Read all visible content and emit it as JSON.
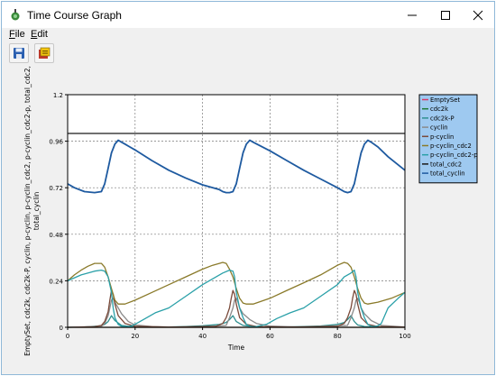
{
  "window": {
    "title": "Time Course Graph"
  },
  "menu": [
    {
      "label": "File",
      "accel": "F"
    },
    {
      "label": "Edit",
      "accel": "E"
    }
  ],
  "toolbar": [
    {
      "icon": "save-icon"
    },
    {
      "icon": "export-icon"
    }
  ],
  "colors": {
    "legend_bg": "#9ec9f0",
    "plot_bg": "#ffffff",
    "grid": "#7a7a7a"
  },
  "chart_data": {
    "type": "line",
    "xlabel": "Time",
    "ylabel": "EmptySet, cdc2k, cdc2k-P, cyclin, p-cyclin, p-cyclin_cdc2, p-cyclin_cdc2-p, total_cdc2, total_cyclin",
    "xlim": [
      0,
      100
    ],
    "ylim": [
      0,
      1.2
    ],
    "xticks": [
      "0",
      "20",
      "40",
      "60",
      "80",
      "100"
    ],
    "yticks": [
      "0",
      "0.24",
      "0.48",
      "0.72",
      "0.96",
      "1.2"
    ],
    "grid": true,
    "legend_position": "right",
    "series": [
      {
        "name": "EmptySet",
        "color": "#d63a6a",
        "x": [
          0,
          100
        ],
        "y": [
          0,
          0
        ]
      },
      {
        "name": "cdc2k",
        "color": "#1f7a3a",
        "x": [
          0,
          100
        ],
        "y": [
          0,
          0
        ]
      },
      {
        "name": "cdc2k-P",
        "color": "#2f8f8f",
        "x": [
          0,
          5,
          10,
          11,
          12,
          13,
          14,
          16,
          19,
          25,
          30,
          35,
          40,
          45,
          47,
          48,
          49,
          50,
          52,
          55,
          60,
          65,
          70,
          75,
          80,
          82,
          83,
          84,
          85,
          86,
          88,
          92,
          96,
          100
        ],
        "y": [
          0,
          0.002,
          0.008,
          0.015,
          0.03,
          0.06,
          0.035,
          0.01,
          0.003,
          0.001,
          0.002,
          0.004,
          0.008,
          0.015,
          0.025,
          0.04,
          0.06,
          0.03,
          0.01,
          0.003,
          0.001,
          0.002,
          0.004,
          0.007,
          0.015,
          0.025,
          0.04,
          0.06,
          0.03,
          0.012,
          0.004,
          0.001,
          0.001,
          0.001
        ]
      },
      {
        "name": "cyclin",
        "color": "#8a8a8a",
        "x": [
          0,
          10,
          11,
          12,
          12.5,
          13,
          13.5,
          14,
          15,
          16,
          18,
          20,
          25,
          30,
          40,
          47,
          48,
          49,
          49.5,
          50,
          50.5,
          51,
          52,
          54,
          56,
          60,
          70,
          83,
          84,
          85,
          85.5,
          86,
          86.5,
          87,
          88,
          90,
          93,
          100
        ],
        "y": [
          0,
          0.005,
          0.02,
          0.06,
          0.1,
          0.14,
          0.15,
          0.13,
          0.1,
          0.07,
          0.03,
          0.012,
          0.004,
          0.002,
          0.001,
          0.01,
          0.05,
          0.1,
          0.14,
          0.15,
          0.13,
          0.1,
          0.07,
          0.04,
          0.02,
          0.006,
          0.001,
          0.01,
          0.05,
          0.1,
          0.14,
          0.15,
          0.13,
          0.1,
          0.07,
          0.035,
          0.01,
          0.002
        ]
      },
      {
        "name": "p-cyclin",
        "color": "#7a4a3a",
        "x": [
          0,
          8,
          10,
          11,
          12,
          12.5,
          13,
          13.5,
          14,
          15,
          17,
          20,
          30,
          44,
          46,
          47,
          48,
          48.5,
          49,
          49.5,
          50,
          51,
          53,
          56,
          65,
          80,
          82,
          83,
          84,
          84.5,
          85,
          85.5,
          86,
          87,
          89,
          92,
          100
        ],
        "y": [
          0,
          0.003,
          0.01,
          0.03,
          0.08,
          0.14,
          0.19,
          0.17,
          0.12,
          0.06,
          0.02,
          0.005,
          0.001,
          0.005,
          0.02,
          0.05,
          0.1,
          0.15,
          0.19,
          0.17,
          0.12,
          0.05,
          0.015,
          0.004,
          0.001,
          0.005,
          0.02,
          0.05,
          0.1,
          0.15,
          0.19,
          0.17,
          0.12,
          0.05,
          0.015,
          0.004,
          0.001
        ]
      },
      {
        "name": "p-cyclin_cdc2",
        "color": "#8a7a2a",
        "x": [
          0,
          2,
          4,
          6,
          8,
          10,
          11,
          12,
          13,
          14,
          15,
          17,
          20,
          25,
          30,
          35,
          40,
          43,
          45,
          46,
          47,
          48,
          49,
          50,
          51,
          52,
          53,
          55,
          60,
          65,
          70,
          75,
          80,
          82,
          83,
          84,
          85,
          86,
          87,
          88,
          89,
          92,
          96,
          100
        ],
        "y": [
          0.24,
          0.27,
          0.295,
          0.315,
          0.33,
          0.33,
          0.31,
          0.26,
          0.2,
          0.14,
          0.12,
          0.12,
          0.14,
          0.18,
          0.22,
          0.26,
          0.3,
          0.32,
          0.33,
          0.335,
          0.33,
          0.3,
          0.26,
          0.2,
          0.15,
          0.125,
          0.12,
          0.12,
          0.15,
          0.19,
          0.23,
          0.27,
          0.32,
          0.335,
          0.33,
          0.31,
          0.26,
          0.2,
          0.15,
          0.125,
          0.12,
          0.13,
          0.15,
          0.18
        ]
      },
      {
        "name": "p-cyclin_cdc2-p",
        "color": "#2aa0a8",
        "x": [
          0,
          4,
          8,
          10,
          11,
          12,
          13,
          13.5,
          14,
          15,
          16,
          17,
          18,
          19,
          20,
          21,
          23,
          26,
          30,
          35,
          40,
          44,
          46,
          48,
          49,
          49.5,
          50,
          51,
          52,
          53,
          54,
          55,
          56,
          57,
          59,
          62,
          66,
          70,
          75,
          80,
          82,
          84,
          85,
          85.5,
          86,
          87,
          88,
          89,
          90,
          91,
          92,
          93,
          95,
          98,
          100
        ],
        "y": [
          0.24,
          0.27,
          0.29,
          0.295,
          0.29,
          0.26,
          0.18,
          0.1,
          0.05,
          0.015,
          0.005,
          0.003,
          0.004,
          0.008,
          0.016,
          0.025,
          0.045,
          0.075,
          0.1,
          0.16,
          0.22,
          0.26,
          0.28,
          0.295,
          0.29,
          0.26,
          0.18,
          0.1,
          0.05,
          0.015,
          0.005,
          0.003,
          0.004,
          0.008,
          0.016,
          0.045,
          0.075,
          0.1,
          0.16,
          0.22,
          0.26,
          0.28,
          0.295,
          0.26,
          0.18,
          0.1,
          0.05,
          0.015,
          0.005,
          0.004,
          0.008,
          0.02,
          0.1,
          0.15,
          0.18
        ]
      },
      {
        "name": "total_cdc2",
        "color": "#1a1a1a",
        "x": [
          0,
          100
        ],
        "y": [
          1,
          1
        ]
      },
      {
        "name": "total_cyclin",
        "color": "#1e5aa0",
        "x": [
          0,
          2,
          5,
          8,
          10,
          11,
          12,
          13,
          14,
          15,
          16,
          17,
          18,
          20,
          25,
          30,
          35,
          40,
          45,
          46,
          47,
          48,
          49,
          50,
          51,
          52,
          53,
          54,
          55,
          60,
          65,
          70,
          75,
          80,
          82,
          83,
          84,
          85,
          86,
          87,
          88,
          89,
          90,
          92,
          95,
          100
        ],
        "y": [
          0.74,
          0.72,
          0.7,
          0.695,
          0.7,
          0.74,
          0.82,
          0.9,
          0.945,
          0.965,
          0.955,
          0.945,
          0.935,
          0.915,
          0.86,
          0.81,
          0.77,
          0.735,
          0.71,
          0.7,
          0.695,
          0.695,
          0.7,
          0.74,
          0.82,
          0.9,
          0.945,
          0.965,
          0.955,
          0.91,
          0.86,
          0.81,
          0.765,
          0.72,
          0.7,
          0.695,
          0.7,
          0.74,
          0.82,
          0.9,
          0.945,
          0.965,
          0.955,
          0.93,
          0.88,
          0.81
        ]
      }
    ]
  }
}
